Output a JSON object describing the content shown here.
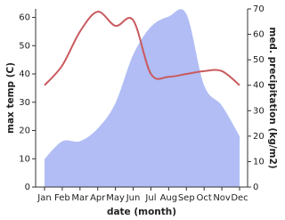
{
  "chart_data": {
    "type": "line",
    "xlabel": "date (month)",
    "ylabel": "max temp (C)",
    "y2label": "med. precipitation (kg/m2)",
    "categories": [
      "Jan",
      "Feb",
      "Mar",
      "Apr",
      "May",
      "Jun",
      "Jul",
      "Aug",
      "Sep",
      "Oct",
      "Nov",
      "Dec"
    ],
    "series": [
      {
        "name": "med. precipitation",
        "color": "#b1bdf4",
        "area": true,
        "axis": "y2",
        "values": [
          11,
          18,
          18,
          23,
          33,
          52,
          63,
          67,
          68,
          40,
          32,
          20
        ]
      },
      {
        "name": "max temp",
        "color": "#c95a5e",
        "area": false,
        "values": [
          36,
          43,
          55,
          62,
          57,
          59,
          40,
          39,
          40,
          41,
          41,
          36
        ]
      }
    ],
    "ylim": [
      0,
      63
    ],
    "yticks": [
      0,
      10,
      20,
      30,
      40,
      50,
      60
    ],
    "y2lim": [
      0,
      70
    ],
    "y2ticks": [
      0,
      10,
      20,
      30,
      40,
      50,
      60,
      70
    ]
  }
}
